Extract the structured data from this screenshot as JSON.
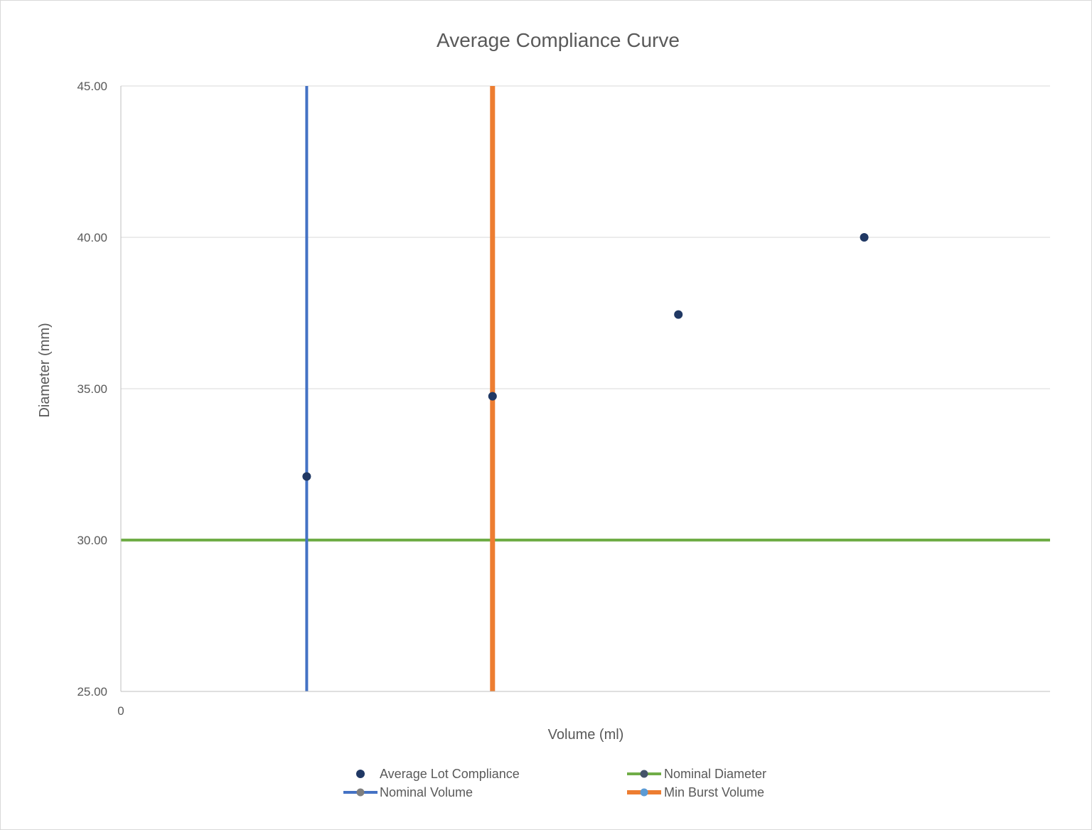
{
  "chart_data": {
    "type": "scatter",
    "title": "Average Compliance Curve",
    "xlabel": "Volume (ml)",
    "ylabel": "Diameter (mm)",
    "xlim": [
      0,
      5
    ],
    "ylim": [
      25,
      45
    ],
    "x_tick_labels": [
      "0"
    ],
    "y_ticks": [
      25,
      30,
      35,
      40,
      45
    ],
    "y_tick_labels": [
      "25.00",
      "30.00",
      "35.00",
      "40.00",
      "45.00"
    ],
    "grid": true,
    "legend_position": "bottom",
    "series": [
      {
        "name": "Average Lot Compliance",
        "kind": "markers",
        "color": "#203864",
        "points": [
          {
            "x": 1,
            "y": 32.1
          },
          {
            "x": 2,
            "y": 34.75
          },
          {
            "x": 3,
            "y": 37.45
          },
          {
            "x": 4,
            "y": 40.0
          }
        ]
      },
      {
        "name": "Nominal Diameter",
        "kind": "line",
        "color": "#70ad47",
        "marker_color": "#44546a",
        "points": [
          {
            "x": 0,
            "y": 30
          },
          {
            "x": 5,
            "y": 30
          }
        ]
      },
      {
        "name": "Nominal Volume",
        "kind": "line",
        "color": "#4472c4",
        "marker_color": "#7f7f7f",
        "points": [
          {
            "x": 1,
            "y": 25
          },
          {
            "x": 1,
            "y": 45
          }
        ]
      },
      {
        "name": "Min Burst Volume",
        "kind": "line",
        "color": "#ed7d31",
        "marker_color": "#5b9bd5",
        "points": [
          {
            "x": 2,
            "y": 25
          },
          {
            "x": 2,
            "y": 45
          }
        ]
      }
    ]
  }
}
